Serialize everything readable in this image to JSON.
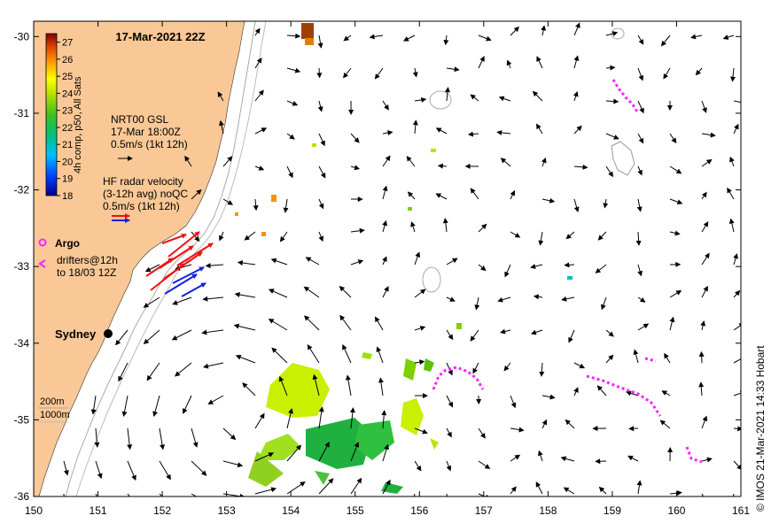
{
  "title": "17-Mar-2021 22Z",
  "axes": {
    "x_ticks": [
      "150",
      "151",
      "152",
      "153",
      "154",
      "155",
      "156",
      "157",
      "158",
      "159",
      "160",
      "161"
    ],
    "y_ticks": [
      "-30",
      "-31",
      "-32",
      "-33",
      "-34",
      "-35",
      "-36"
    ],
    "x_range": [
      150,
      161
    ],
    "y_range": [
      -36,
      -29.8
    ]
  },
  "colorbar": {
    "label": "4h comp, p50, All Sats",
    "ticks": [
      "27",
      "26",
      "25",
      "24",
      "23",
      "22",
      "21",
      "20",
      "19",
      "18"
    ],
    "range": [
      18,
      27.5
    ]
  },
  "legend": {
    "gsl_line1": "NRT00 GSL",
    "gsl_line2": "17-Mar 18:00Z",
    "gsl_line3": "0.5m/s (1kt 12h)",
    "hf_line1": "HF radar velocity",
    "hf_line2": "(3-12h avg) noQC",
    "hf_line3": "0.5m/s (1kt 12h)",
    "argo": "Argo",
    "drifters_line1": "drifters@12h",
    "drifters_line2": "to 18/03 12Z",
    "depth_200": "200m",
    "depth_1000": "1000m"
  },
  "place": {
    "name": "Sydney",
    "lon": 151.2,
    "lat": -33.87
  },
  "credit": "© IMOS 21-Mar-2021 14:33 Hobart",
  "colors": {
    "land": "#f9c896",
    "hf_red": "#ee1111",
    "hf_blue": "#1122dd",
    "argo": "#ff22ff",
    "contour": "#aaaaaa"
  }
}
